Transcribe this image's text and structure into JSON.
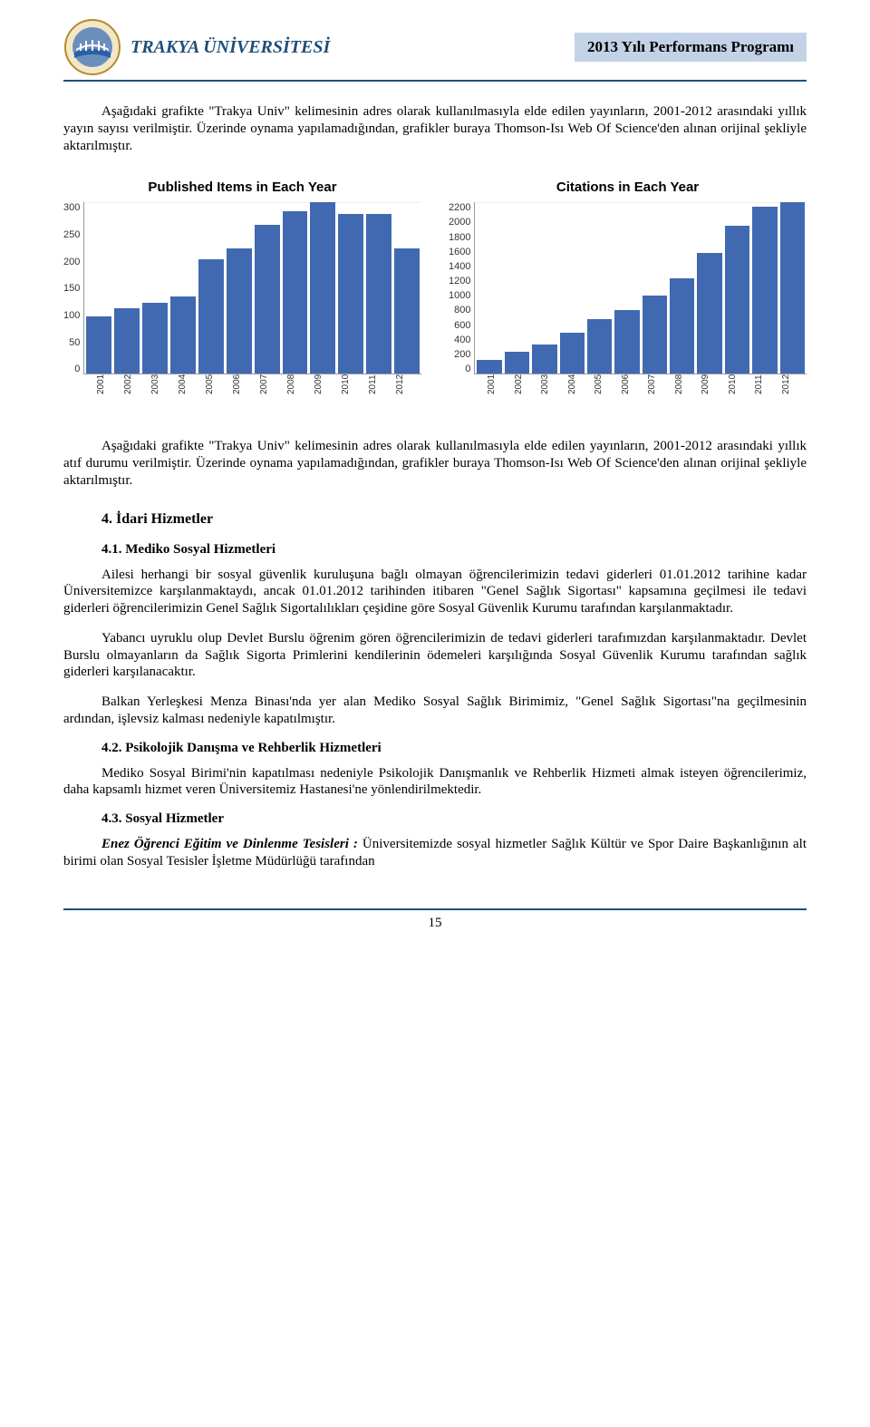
{
  "header": {
    "left": "TRAKYA ÜNİVERSİTESİ",
    "right": "2013 Yılı Performans Programı",
    "left_color": "#1f4e79",
    "right_bg": "#c3d2e6",
    "logo_colors": {
      "outer": "#b58b2b",
      "inner": "#6b8fbd",
      "water": "#2a5ea6",
      "bridge": "#ffffff"
    }
  },
  "para1": "Aşağıdaki grafikte \"Trakya Univ\" kelimesinin adres olarak kullanılmasıyla elde edilen yayınların, 2001-2012 arasındaki yıllık yayın sayısı verilmiştir. Üzerinde oynama yapılamadığından, grafikler buraya Thomson-Isı Web Of Science'den alınan orijinal şekliyle aktarılmıştır.",
  "para2": "Aşağıdaki grafikte \"Trakya Univ\" kelimesinin adres olarak kullanılmasıyla elde edilen yayınların, 2001-2012 arasındaki yıllık atıf durumu verilmiştir. Üzerinde oynama yapılamadığından, grafikler buraya Thomson-Isı Web Of Science'den alınan orijinal şekliyle aktarılmıştır.",
  "chart_published": {
    "type": "bar",
    "title": "Published Items in Each Year",
    "categories": [
      "2001",
      "2002",
      "2003",
      "2004",
      "2005",
      "2006",
      "2007",
      "2008",
      "2009",
      "2010",
      "2011",
      "2012"
    ],
    "values": [
      100,
      115,
      125,
      135,
      200,
      220,
      260,
      285,
      300,
      280,
      280,
      220
    ],
    "bar_color": "#4169b2",
    "ylim": [
      0,
      300
    ],
    "yticks": [
      0,
      50,
      100,
      150,
      200,
      250,
      300
    ],
    "title_fontsize": 15,
    "tick_fontsize": 11,
    "background_color": "#ffffff"
  },
  "chart_citations": {
    "type": "bar",
    "title": "Citations in Each Year",
    "categories": [
      "2001",
      "2002",
      "2003",
      "2004",
      "2005",
      "2006",
      "2007",
      "2008",
      "2009",
      "2010",
      "2011",
      "2012"
    ],
    "values": [
      180,
      280,
      380,
      530,
      700,
      820,
      1000,
      1220,
      1550,
      1900,
      2150,
      2200
    ],
    "bar_color": "#4169b2",
    "ylim": [
      0,
      2200
    ],
    "yticks": [
      0,
      200,
      400,
      600,
      800,
      1000,
      1200,
      1400,
      1600,
      1800,
      2000,
      2200
    ],
    "title_fontsize": 15,
    "tick_fontsize": 11,
    "background_color": "#ffffff"
  },
  "section4": {
    "heading": "4. İdari Hizmetler",
    "sub41_h": "4.1. Mediko Sosyal Hizmetleri",
    "sub41_p1": "Ailesi herhangi bir sosyal güvenlik kuruluşuna bağlı olmayan öğrencilerimizin tedavi giderleri 01.01.2012 tarihine kadar Üniversitemizce karşılanmaktaydı, ancak 01.01.2012 tarihinden itibaren \"Genel Sağlık Sigortası\" kapsamına geçilmesi ile tedavi giderleri öğrencilerimizin Genel Sağlık Sigortalılıkları çeşidine göre Sosyal Güvenlik Kurumu tarafından karşılanmaktadır.",
    "sub41_p2": "Yabancı uyruklu olup Devlet Burslu öğrenim gören öğrencilerimizin de tedavi giderleri tarafımızdan karşılanmaktadır. Devlet Burslu olmayanların da Sağlık Sigorta Primlerini kendilerinin ödemeleri karşılığında Sosyal Güvenlik Kurumu tarafından sağlık giderleri karşılanacaktır.",
    "sub41_p3": "Balkan Yerleşkesi Menza Binası'nda yer alan Mediko Sosyal Sağlık Birimimiz, \"Genel Sağlık Sigortası\"na geçilmesinin ardından, işlevsiz kalması nedeniyle kapatılmıştır.",
    "sub42_h": "4.2. Psikolojik Danışma ve Rehberlik Hizmetleri",
    "sub42_p": "Mediko Sosyal Birimi'nin kapatılması nedeniyle Psikolojik Danışmanlık ve Rehberlik Hizmeti almak isteyen öğrencilerimiz, daha kapsamlı hizmet veren Üniversitemiz Hastanesi'ne yönlendirilmektedir.",
    "sub43_h": "4.3. Sosyal Hizmetler",
    "sub43_lead": "Enez Öğrenci Eğitim ve Dinlenme Tesisleri :",
    "sub43_p": " Üniversitemizde sosyal hizmetler Sağlık Kültür ve Spor Daire Başkanlığının alt birimi olan Sosyal Tesisler İşletme Müdürlüğü tarafından"
  },
  "page_number": "15"
}
